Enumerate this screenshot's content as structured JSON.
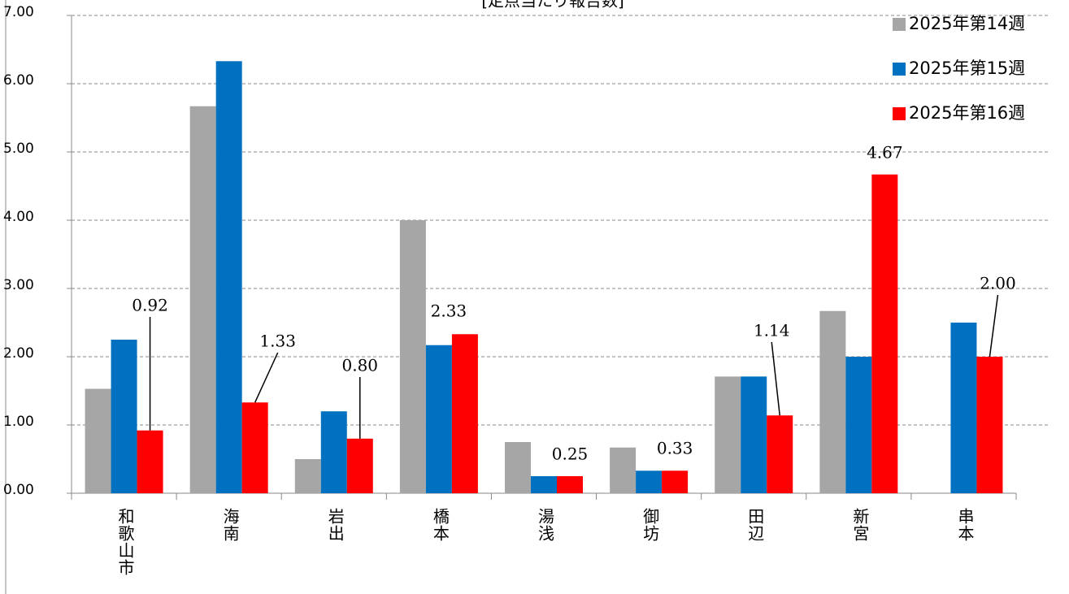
{
  "chart_data": {
    "type": "bar",
    "title": "[定点当たり報告数]",
    "categories": [
      "和歌山市",
      "海南",
      "岩出",
      "橋本",
      "湯浅",
      "御坊",
      "田辺",
      "新宮",
      "串本"
    ],
    "series": [
      {
        "name": "2025年第14週",
        "color": "#a6a6a6",
        "values": [
          1.53,
          5.67,
          0.5,
          4.0,
          0.75,
          0.67,
          1.71,
          2.67,
          0
        ]
      },
      {
        "name": "2025年第15週",
        "color": "#0070c0",
        "values": [
          2.25,
          6.33,
          1.2,
          2.17,
          0.25,
          0.33,
          1.71,
          2.0,
          2.5
        ]
      },
      {
        "name": "2025年第16週",
        "color": "#ff0000",
        "values": [
          0.92,
          1.33,
          0.8,
          2.33,
          0.25,
          0.33,
          1.14,
          4.67,
          2.0
        ],
        "value_labels": [
          "0.92",
          "1.33",
          "0.80",
          "2.33",
          "0.25",
          "0.33",
          "1.14",
          "4.67",
          "2.00"
        ]
      }
    ],
    "ylim": [
      0,
      7
    ],
    "yticks": [
      {
        "value": 0,
        "label": "0.00"
      },
      {
        "value": 1,
        "label": "1.00"
      },
      {
        "value": 2,
        "label": "2.00"
      },
      {
        "value": 3,
        "label": "3.00"
      },
      {
        "value": 4,
        "label": "4.00"
      },
      {
        "value": 5,
        "label": "5.00"
      },
      {
        "value": 6,
        "label": "6.00"
      },
      {
        "value": 7,
        "label": "7.00"
      }
    ],
    "grid": true,
    "legend": "top-right"
  }
}
